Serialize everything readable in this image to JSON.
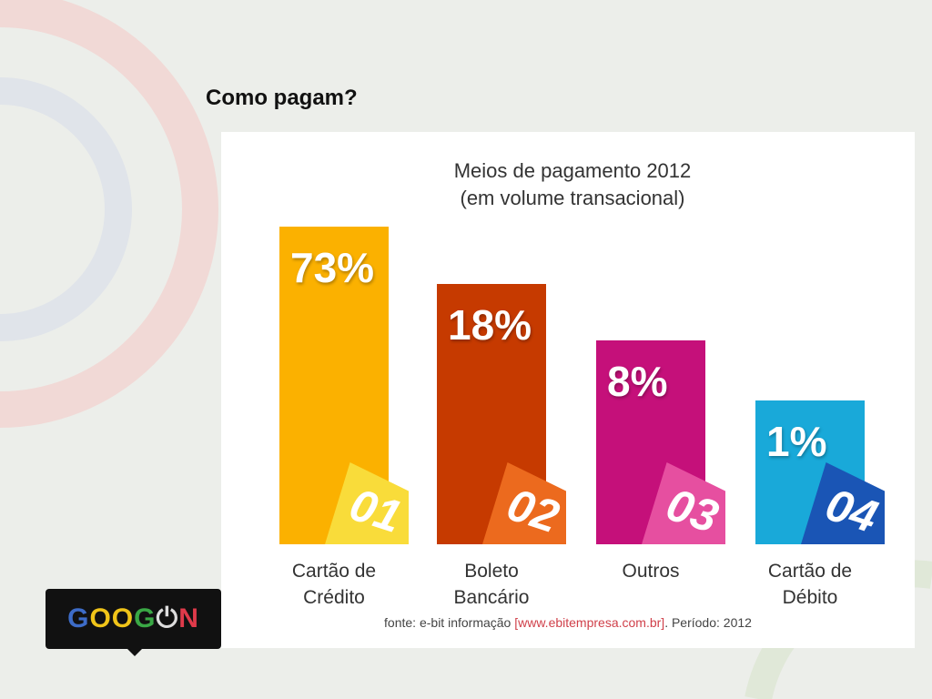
{
  "slide_title": "Como pagam?",
  "logo_text": "GOOGON",
  "chart_data": {
    "type": "bar",
    "title": "Meios de pagamento 2012",
    "subtitle": "(em volume transacional)",
    "categories": [
      "Cartão de Crédito",
      "Boleto Bancário",
      "Outros",
      "Cartão de Débito"
    ],
    "category_lines": [
      [
        "Cartão de",
        "Crédito"
      ],
      [
        "Boleto",
        "Bancário"
      ],
      [
        "Outros",
        ""
      ],
      [
        "Cartão de",
        "Débito"
      ]
    ],
    "values": [
      73,
      18,
      8,
      1
    ],
    "value_labels": [
      "73%",
      "18%",
      "8%",
      "1%"
    ],
    "rank_labels": [
      "01",
      "02",
      "03",
      "04"
    ],
    "colors": [
      "#fbb100",
      "#c63a00",
      "#c5107a",
      "#19a9d9"
    ],
    "tab_colors": [
      "#f9dc3a",
      "#ec6a1e",
      "#e64fa0",
      "#1a55b5"
    ],
    "source_prefix": "fonte: e-bit informação",
    "source_url": "[www.ebitempresa.com.br]",
    "source_suffix": ". Período: 2012"
  }
}
